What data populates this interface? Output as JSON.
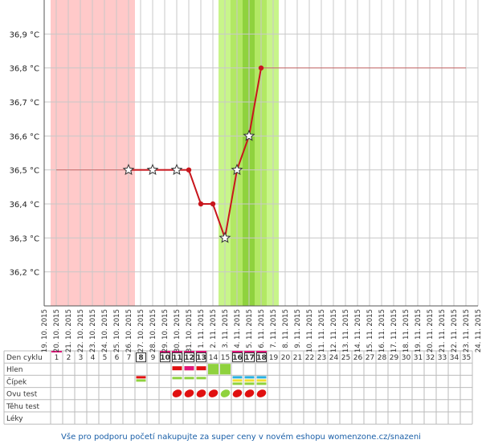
{
  "chart_data": {
    "type": "line",
    "categories": [
      "19. 10. 2015",
      "20. 10. 2015",
      "21. 10. 2015",
      "22. 10. 2015",
      "23. 10. 2015",
      "24. 10. 2015",
      "25. 10. 2015",
      "26. 10. 2015",
      "27. 10. 2015",
      "28. 10. 2015",
      "29. 10. 2015",
      "30. 10. 2015",
      "31. 10. 2015",
      "1. 11. 2015",
      "2. 11. 2015",
      "3. 11. 2015",
      "4. 11. 2015",
      "5. 11. 2015",
      "6. 11. 2015",
      "7. 11. 2015",
      "8. 11. 2015",
      "9. 11. 2015",
      "10. 11. 2015",
      "11. 11. 2015",
      "12. 11. 2015",
      "13. 11. 2015",
      "14. 11. 2015",
      "15. 11. 2015",
      "16. 11. 2015",
      "17. 11. 2015",
      "18. 11. 2015",
      "19. 11. 2015",
      "20. 11. 2015",
      "21. 11. 2015",
      "22. 11. 2015",
      "23. 11. 2015",
      "24. 11. 2015"
    ],
    "series": [
      {
        "color": "#c8161d",
        "x": [
          "26. 10. 2015",
          "28. 10. 2015",
          "30. 10. 2015",
          "31. 10. 2015",
          "1. 11. 2015",
          "2. 11. 2015",
          "3. 11. 2015",
          "4. 11. 2015",
          "5. 11. 2015",
          "6. 11. 2015"
        ],
        "values": [
          36.5,
          36.5,
          36.5,
          36.5,
          36.4,
          36.4,
          36.3,
          36.5,
          36.6,
          36.8
        ],
        "markers": [
          "star",
          "star",
          "star",
          "dot",
          "dot",
          "dot",
          "star",
          "star",
          "star",
          "dot"
        ]
      }
    ],
    "reference_lines": [
      {
        "from": "20. 10. 2015",
        "to": "26. 10. 2015",
        "value": 36.5
      },
      {
        "from": "6. 11. 2015",
        "to": "23. 11. 2015",
        "value": 36.8
      }
    ],
    "ylim": [
      36.1,
      37.0
    ],
    "yticks": [
      {
        "value": 36.2,
        "label": "36,2 °C"
      },
      {
        "value": 36.3,
        "label": "36,3 °C"
      },
      {
        "value": 36.4,
        "label": "36,4 °C"
      },
      {
        "value": 36.5,
        "label": "36,5 °C"
      },
      {
        "value": 36.6,
        "label": "36,6 °C"
      },
      {
        "value": 36.7,
        "label": "36,7 °C"
      },
      {
        "value": 36.8,
        "label": "36,8 °C"
      },
      {
        "value": 36.9,
        "label": "36,9 °C"
      }
    ],
    "grid": true
  },
  "table": {
    "row_labels": [
      "Den cyklu",
      "Hlen",
      "Čípek",
      "Ovu test",
      "Těhu test",
      "Léky"
    ],
    "cycle_days": [
      1,
      2,
      3,
      4,
      5,
      6,
      7,
      8,
      9,
      10,
      11,
      12,
      13,
      14,
      15,
      16,
      17,
      18,
      19,
      20,
      21,
      22,
      23,
      24,
      25,
      26,
      27,
      28,
      29,
      30,
      31,
      32,
      33,
      34,
      35
    ],
    "highlighted_days": [
      8,
      10,
      11,
      12,
      13,
      16,
      17,
      18
    ]
  },
  "footer": "Vše pro podporu početí nakupujte za super ceny v novém eshopu womenzone.cz/snazeni"
}
